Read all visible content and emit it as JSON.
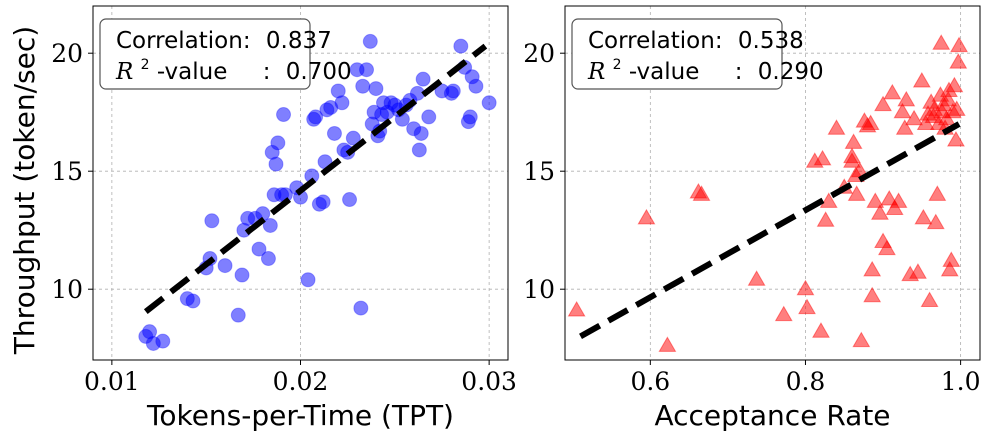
{
  "chart_data": [
    {
      "type": "scatter",
      "title": "",
      "xlabel": "Tokens-per-Time (TPT)",
      "ylabel": "Throughput (token/sec)",
      "xlim": [
        0.009,
        0.031
      ],
      "ylim": [
        7.0,
        22.0
      ],
      "xticks": [
        0.01,
        0.02,
        0.03
      ],
      "xtick_labels": [
        "0.01",
        "0.02",
        "0.03"
      ],
      "yticks": [
        10,
        15,
        20
      ],
      "ytick_labels": [
        "10",
        "15",
        "20"
      ],
      "grid": true,
      "marker": "circle",
      "color": "#0000ff",
      "annotation": {
        "corr_label": "Correlation:",
        "corr_value": "0.837",
        "r2_symbol": "R",
        "r2_sup": "2",
        "r2_label": "-value",
        "r2_sep": ":",
        "r2_value": "0.700",
        "position": "top-left"
      },
      "fit_line": {
        "x": [
          0.0118,
          0.0298
        ],
        "y": [
          9.05,
          20.3
        ]
      },
      "points": [
        [
          0.0118,
          8.0
        ],
        [
          0.012,
          8.2
        ],
        [
          0.0122,
          7.7
        ],
        [
          0.0127,
          7.8
        ],
        [
          0.014,
          9.6
        ],
        [
          0.0143,
          9.5
        ],
        [
          0.015,
          10.9
        ],
        [
          0.0152,
          11.3
        ],
        [
          0.0153,
          12.9
        ],
        [
          0.016,
          11.0
        ],
        [
          0.0167,
          8.9
        ],
        [
          0.0169,
          10.6
        ],
        [
          0.017,
          12.5
        ],
        [
          0.0172,
          13.0
        ],
        [
          0.0176,
          13.0
        ],
        [
          0.0178,
          11.7
        ],
        [
          0.018,
          13.2
        ],
        [
          0.0183,
          11.3
        ],
        [
          0.0184,
          12.7
        ],
        [
          0.0185,
          15.8
        ],
        [
          0.0186,
          14.0
        ],
        [
          0.0187,
          15.3
        ],
        [
          0.0188,
          16.2
        ],
        [
          0.019,
          14.0
        ],
        [
          0.0191,
          17.4
        ],
        [
          0.0192,
          14.0
        ],
        [
          0.0198,
          14.3
        ],
        [
          0.02,
          13.9
        ],
        [
          0.0204,
          10.4
        ],
        [
          0.0206,
          14.8
        ],
        [
          0.0207,
          17.2
        ],
        [
          0.0208,
          17.3
        ],
        [
          0.021,
          13.6
        ],
        [
          0.0212,
          13.7
        ],
        [
          0.0213,
          15.4
        ],
        [
          0.0214,
          17.6
        ],
        [
          0.0216,
          17.7
        ],
        [
          0.0218,
          16.6
        ],
        [
          0.022,
          18.4
        ],
        [
          0.0222,
          17.9
        ],
        [
          0.0223,
          15.9
        ],
        [
          0.0225,
          15.8
        ],
        [
          0.0226,
          13.8
        ],
        [
          0.0228,
          16.4
        ],
        [
          0.023,
          19.3
        ],
        [
          0.0232,
          9.2
        ],
        [
          0.0233,
          18.6
        ],
        [
          0.0235,
          19.3
        ],
        [
          0.0237,
          20.5
        ],
        [
          0.0238,
          17.0
        ],
        [
          0.0239,
          17.5
        ],
        [
          0.024,
          18.5
        ],
        [
          0.0241,
          16.5
        ],
        [
          0.0242,
          16.7
        ],
        [
          0.0243,
          17.4
        ],
        [
          0.0244,
          17.9
        ],
        [
          0.0246,
          17.5
        ],
        [
          0.0248,
          17.9
        ],
        [
          0.025,
          17.8
        ],
        [
          0.0252,
          17.6
        ],
        [
          0.0254,
          17.2
        ],
        [
          0.0256,
          17.8
        ],
        [
          0.0258,
          18.0
        ],
        [
          0.026,
          16.8
        ],
        [
          0.0262,
          18.3
        ],
        [
          0.0263,
          15.9
        ],
        [
          0.0264,
          16.6
        ],
        [
          0.0265,
          18.9
        ],
        [
          0.0268,
          17.3
        ],
        [
          0.0275,
          18.4
        ],
        [
          0.028,
          18.3
        ],
        [
          0.0281,
          18.4
        ],
        [
          0.0285,
          20.3
        ],
        [
          0.0287,
          19.4
        ],
        [
          0.0289,
          17.1
        ],
        [
          0.029,
          17.3
        ],
        [
          0.0291,
          19.0
        ],
        [
          0.0293,
          18.6
        ],
        [
          0.03,
          17.9
        ]
      ]
    },
    {
      "type": "scatter",
      "title": "",
      "xlabel": "Acceptance Rate",
      "ylabel": "",
      "xlim": [
        0.49,
        1.025
      ],
      "ylim": [
        7.0,
        22.0
      ],
      "xticks": [
        0.6,
        0.8,
        1.0
      ],
      "xtick_labels": [
        "0.6",
        "0.8",
        "1.0"
      ],
      "yticks": [
        10,
        15,
        20
      ],
      "ytick_labels": [
        "10",
        "15",
        "20"
      ],
      "grid": true,
      "marker": "triangle",
      "color": "#ff0000",
      "annotation": {
        "corr_label": "Correlation:",
        "corr_value": "0.538",
        "r2_symbol": "R",
        "r2_sup": "2",
        "r2_label": "-value",
        "r2_sep": ":",
        "r2_value": "0.290",
        "position": "top-left"
      },
      "fit_line": {
        "x": [
          0.51,
          0.998
        ],
        "y": [
          8.0,
          17.0
        ]
      },
      "points": [
        [
          0.505,
          9.1
        ],
        [
          0.595,
          13.0
        ],
        [
          0.622,
          7.6
        ],
        [
          0.662,
          14.1
        ],
        [
          0.666,
          14.0
        ],
        [
          0.737,
          10.4
        ],
        [
          0.772,
          8.9
        ],
        [
          0.8,
          10.0
        ],
        [
          0.802,
          9.2
        ],
        [
          0.812,
          15.4
        ],
        [
          0.82,
          8.2
        ],
        [
          0.822,
          15.5
        ],
        [
          0.826,
          12.9
        ],
        [
          0.83,
          13.7
        ],
        [
          0.84,
          16.8
        ],
        [
          0.85,
          14.3
        ],
        [
          0.86,
          15.4
        ],
        [
          0.86,
          15.6
        ],
        [
          0.862,
          16.2
        ],
        [
          0.865,
          14.8
        ],
        [
          0.866,
          14.0
        ],
        [
          0.87,
          15.0
        ],
        [
          0.872,
          7.8
        ],
        [
          0.876,
          17.1
        ],
        [
          0.88,
          16.9
        ],
        [
          0.884,
          17.0
        ],
        [
          0.886,
          10.8
        ],
        [
          0.886,
          9.7
        ],
        [
          0.89,
          13.7
        ],
        [
          0.896,
          13.2
        ],
        [
          0.9,
          12.0
        ],
        [
          0.9,
          17.8
        ],
        [
          0.905,
          11.7
        ],
        [
          0.908,
          13.8
        ],
        [
          0.912,
          18.3
        ],
        [
          0.915,
          13.4
        ],
        [
          0.92,
          13.7
        ],
        [
          0.925,
          17.5
        ],
        [
          0.928,
          16.8
        ],
        [
          0.93,
          18.0
        ],
        [
          0.935,
          10.6
        ],
        [
          0.94,
          17.2
        ],
        [
          0.945,
          10.7
        ],
        [
          0.95,
          18.8
        ],
        [
          0.952,
          13.0
        ],
        [
          0.955,
          17.0
        ],
        [
          0.958,
          17.4
        ],
        [
          0.96,
          9.5
        ],
        [
          0.962,
          17.9
        ],
        [
          0.965,
          17.3
        ],
        [
          0.966,
          17.6
        ],
        [
          0.968,
          12.8
        ],
        [
          0.97,
          14.0
        ],
        [
          0.972,
          17.0
        ],
        [
          0.974,
          18.2
        ],
        [
          0.975,
          20.4
        ],
        [
          0.976,
          17.5
        ],
        [
          0.978,
          17.8
        ],
        [
          0.98,
          16.8
        ],
        [
          0.982,
          17.2
        ],
        [
          0.984,
          18.0
        ],
        [
          0.985,
          18.4
        ],
        [
          0.986,
          10.8
        ],
        [
          0.988,
          11.2
        ],
        [
          0.99,
          17.5
        ],
        [
          0.992,
          18.6
        ],
        [
          0.994,
          16.3
        ],
        [
          0.995,
          17.6
        ],
        [
          0.997,
          19.6
        ],
        [
          0.998,
          20.3
        ]
      ]
    }
  ]
}
